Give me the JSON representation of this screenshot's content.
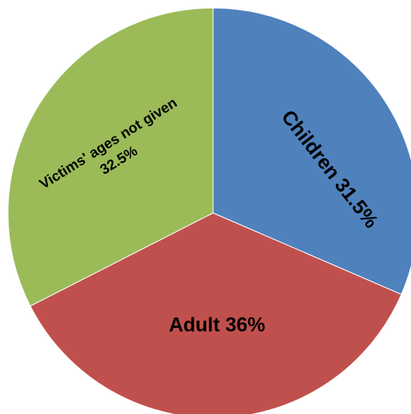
{
  "chart_data": {
    "type": "pie",
    "title": "",
    "slices": [
      {
        "label": "Children 31.5%",
        "value": 31.5,
        "color": "#4F81BD"
      },
      {
        "label": "Adult 36%",
        "value": 36,
        "color": "#C0504D"
      },
      {
        "label_lines": [
          "Victims' ages not given",
          "32.5%"
        ],
        "value": 32.5,
        "color": "#9BBB59"
      }
    ]
  }
}
